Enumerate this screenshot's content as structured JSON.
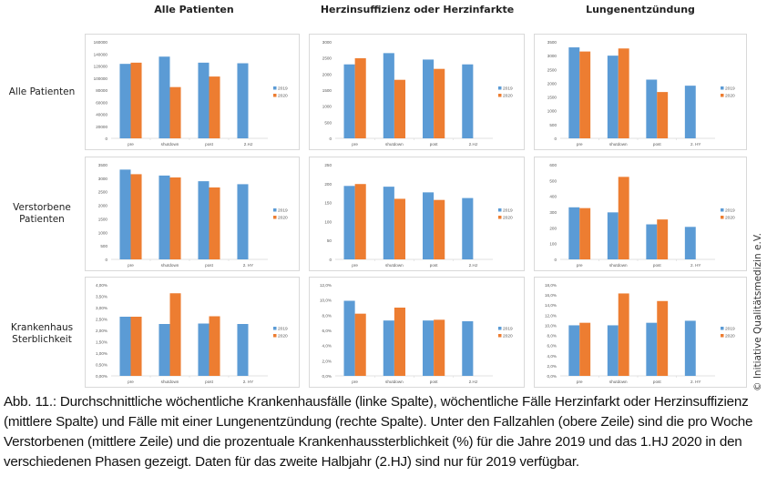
{
  "column_titles": [
    "Alle Patienten",
    "Herzinsuffizienz oder Herzinfarkte",
    "Lungenentzündung"
  ],
  "row_titles": [
    [
      "Alle Patienten"
    ],
    [
      "Verstorbene",
      "Patienten"
    ],
    [
      "Krankenhaus",
      "Sterblichkeit"
    ]
  ],
  "copyright": "© Initiative Qualitätsmedizin e.V.",
  "caption": "Abb. 11.: Durchschnittliche wöchentliche Krankenhausfälle (linke Spalte), wöchentliche Fälle Herzinfarkt oder Herzinsuffizienz (mittlere Spalte) und Fälle mit einer Lungenentzündung (rechte Spalte). Unter den Fallzahlen (obere Zeile) sind die pro Woche Verstorbenen (mittlere Zeile) und die prozentuale Krankenhaussterblichkeit (%) für die Jahre 2019 und das 1.HJ 2020 in den verschiedenen Phasen gezeigt. Daten für das zweite Halbjahr (2.HJ) sind nur für 2019 verfügbar.",
  "colors": {
    "2019": "#5b9bd5",
    "2020": "#ed7d31",
    "grid": "#d9d9d9",
    "tick": "#595959"
  },
  "chart_data": [
    {
      "id": "faelle-alle",
      "type": "bar",
      "row": 0,
      "col": 0,
      "categories": [
        "pre",
        "shutdown",
        "post",
        "2.HJ"
      ],
      "series": [
        {
          "name": "2019",
          "values": [
            123500,
            135500,
            125500,
            124500
          ]
        },
        {
          "name": "2020",
          "values": [
            125500,
            85000,
            102500,
            null
          ]
        }
      ],
      "yticks": [
        "0",
        "20000",
        "40000",
        "60000",
        "80000",
        "100000",
        "120000",
        "140000",
        "160000"
      ],
      "ylim": [
        0,
        160000
      ],
      "legend": "right"
    },
    {
      "id": "faelle-herz",
      "type": "bar",
      "row": 0,
      "col": 1,
      "categories": [
        "pre",
        "shutdown",
        "post",
        "2.HJ"
      ],
      "series": [
        {
          "name": "2019",
          "values": [
            2300,
            2650,
            2450,
            2300
          ]
        },
        {
          "name": "2020",
          "values": [
            2490,
            1820,
            2160,
            null
          ]
        }
      ],
      "yticks": [
        "0",
        "500",
        "1000",
        "1500",
        "2000",
        "2500",
        "3000"
      ],
      "ylim": [
        0,
        3000
      ],
      "legend": "right"
    },
    {
      "id": "faelle-lunge",
      "type": "bar",
      "row": 0,
      "col": 2,
      "categories": [
        "pre",
        "shutdown",
        "post",
        "2. HY"
      ],
      "series": [
        {
          "name": "2019",
          "values": [
            3300,
            3000,
            2130,
            1910
          ]
        },
        {
          "name": "2020",
          "values": [
            3150,
            3260,
            1680,
            null
          ]
        }
      ],
      "yticks": [
        "0",
        "500",
        "1000",
        "1500",
        "2000",
        "2500",
        "3000",
        "3500"
      ],
      "ylim": [
        0,
        3500
      ],
      "legend": "right"
    },
    {
      "id": "tote-alle",
      "type": "bar",
      "row": 1,
      "col": 0,
      "categories": [
        "pre",
        "shutdown",
        "post",
        "2. HY"
      ],
      "series": [
        {
          "name": "2019",
          "values": [
            3320,
            3100,
            2890,
            2780
          ]
        },
        {
          "name": "2020",
          "values": [
            3150,
            3030,
            2660,
            null
          ]
        }
      ],
      "yticks": [
        "0",
        "500",
        "1000",
        "1500",
        "2000",
        "2500",
        "3000",
        "3500"
      ],
      "ylim": [
        0,
        3500
      ],
      "legend": "right"
    },
    {
      "id": "tote-herz",
      "type": "bar",
      "row": 1,
      "col": 1,
      "categories": [
        "pre",
        "shutdown",
        "post",
        "2.HJ"
      ],
      "series": [
        {
          "name": "2019",
          "values": [
            194,
            192,
            177,
            162
          ]
        },
        {
          "name": "2020",
          "values": [
            199,
            160,
            157,
            null
          ]
        }
      ],
      "yticks": [
        "0",
        "50",
        "100",
        "150",
        "200",
        "250"
      ],
      "ylim": [
        0,
        250
      ],
      "legend": "right"
    },
    {
      "id": "tote-lunge",
      "type": "bar",
      "row": 1,
      "col": 2,
      "categories": [
        "pre",
        "shutdown",
        "post",
        "2. HY"
      ],
      "series": [
        {
          "name": "2019",
          "values": [
            330,
            298,
            222,
            206
          ]
        },
        {
          "name": "2020",
          "values": [
            325,
            523,
            253,
            null
          ]
        }
      ],
      "yticks": [
        "0",
        "100",
        "200",
        "300",
        "400",
        "500",
        "600"
      ],
      "ylim": [
        0,
        600
      ],
      "legend": "right"
    },
    {
      "id": "sterb-alle",
      "type": "bar",
      "row": 2,
      "col": 0,
      "categories": [
        "pre",
        "shutdown",
        "post",
        "2. HY"
      ],
      "series": [
        {
          "name": "2019",
          "values": [
            2.6,
            2.28,
            2.3,
            2.28
          ]
        },
        {
          "name": "2020",
          "values": [
            2.6,
            3.63,
            2.62,
            null
          ]
        }
      ],
      "yticks": [
        "0,00%",
        "0,50%",
        "1,00%",
        "1,50%",
        "2,00%",
        "2,50%",
        "3,00%",
        "3,50%",
        "4,00%"
      ],
      "ylim": [
        0,
        4
      ],
      "legend": "right"
    },
    {
      "id": "sterb-herz",
      "type": "bar",
      "row": 2,
      "col": 1,
      "categories": [
        "pre",
        "shutdown",
        "post",
        "2.HJ"
      ],
      "series": [
        {
          "name": "2019",
          "values": [
            9.9,
            7.3,
            7.3,
            7.2
          ]
        },
        {
          "name": "2020",
          "values": [
            8.2,
            9.0,
            7.4,
            null
          ]
        }
      ],
      "yticks": [
        "0,0%",
        "2,0%",
        "4,0%",
        "6,0%",
        "8,0%",
        "10,0%",
        "12,0%"
      ],
      "ylim": [
        0,
        12
      ],
      "legend": "right"
    },
    {
      "id": "sterb-lunge",
      "type": "bar",
      "row": 2,
      "col": 2,
      "categories": [
        "pre",
        "shutdown",
        "post",
        "2. HY"
      ],
      "series": [
        {
          "name": "2019",
          "values": [
            10.0,
            10.0,
            10.5,
            10.9
          ]
        },
        {
          "name": "2020",
          "values": [
            10.5,
            16.3,
            14.8,
            null
          ]
        }
      ],
      "yticks": [
        "0,0%",
        "2,0%",
        "4,0%",
        "6,0%",
        "8,0%",
        "10,0%",
        "12,0%",
        "14,0%",
        "16,0%",
        "18,0%"
      ],
      "ylim": [
        0,
        18
      ],
      "legend": "right"
    }
  ]
}
